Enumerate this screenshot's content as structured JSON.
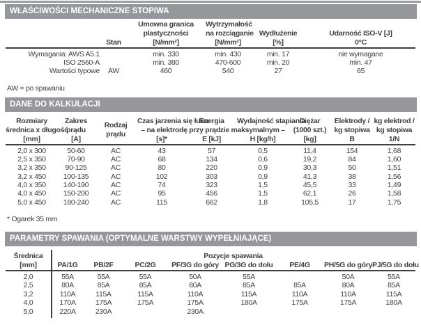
{
  "colors": {
    "section_bar": "#96979b",
    "text": "#414042",
    "rule": "#3d3e40",
    "top_edge_rule": "#9b9c9f"
  },
  "sections": {
    "mechanical": {
      "title": "WŁAŚCIWOŚCI MECHANICZNE STOPIWA",
      "header": {
        "stan": "Stan",
        "yield": [
          "Umowna granica",
          "plastyczności",
          "[N/mm²]"
        ],
        "tensile": [
          "Wytrzymałość",
          "na rozciąganie",
          "[N/mm²]"
        ],
        "elongation": [
          "Wydłużenie",
          "[%]"
        ],
        "impact": [
          "Udarność ISO-V [J]",
          "0°C"
        ]
      },
      "rows": [
        [
          "Wymagania: AWS A5.1",
          "",
          "min. 330",
          "min. 430",
          "min. 17",
          "nie wymagane"
        ],
        [
          "ISO 2560-A",
          "",
          "min. 380",
          "470-600",
          "min. 20",
          "min. 47"
        ],
        [
          "Wartości typowe",
          "AW",
          "460",
          "540",
          "27",
          "65"
        ]
      ],
      "footnote": "AW = po spawaniu"
    },
    "calculation": {
      "title": "DANE DO KALKULACJI",
      "header": {
        "size": [
          "Rozmiary",
          "średnica x długość",
          "[mm]"
        ],
        "current_range": [
          "Zakres",
          "prądu",
          "[A]"
        ],
        "current_type": [
          "Rodzaj",
          "prądu"
        ],
        "group_top": [
          "Czas jarzenia się łuku",
          "Energia",
          "Wydajność stapiania"
        ],
        "group_mid": "– na elektrodę przy prądzie maksymalnym –",
        "group_bottom": [
          "[s]*",
          "E [kJ]",
          "H [kg/h]"
        ],
        "weight": [
          "Ciężar",
          "(1000 szt.)",
          "[kg]"
        ],
        "electrodes_per_kg": [
          "Elektrody /",
          "kg stopiwa",
          "B"
        ],
        "kg_electrodes_per_kg": [
          "kg elektrod /",
          "kg stopiwa",
          "1/N"
        ]
      },
      "rows": [
        [
          "2,0 x 300",
          "50-60",
          "AC",
          "43",
          "57",
          "0,5",
          "11,4",
          "154",
          "1,68"
        ],
        [
          "2,5 x 350",
          "70-90",
          "AC",
          "68",
          "134",
          "0,6",
          "19,2",
          "84",
          "1,60"
        ],
        [
          "3,2 x 350",
          "90-125",
          "AC",
          "80",
          "220",
          "0,9",
          "30,3",
          "50",
          "1,51"
        ],
        [
          "3,2 x 450",
          "100-135",
          "AC",
          "102",
          "303",
          "0,9",
          "41,3",
          "38",
          "1,56"
        ],
        [
          "4,0 x 350",
          "140-190",
          "AC",
          "74",
          "323",
          "1,5",
          "45,5",
          "33",
          "1,49"
        ],
        [
          "4,0 x 450",
          "150-200",
          "AC",
          "95",
          "456",
          "1,5",
          "62,1",
          "26",
          "1,58"
        ],
        [
          "5,0 x 450",
          "180-240",
          "AC",
          "115",
          "662",
          "1,8",
          "105,5",
          "17",
          "1,75"
        ]
      ],
      "footnote": "* Ogarek 35 mm"
    },
    "welding": {
      "title": "PARAMETRY SPAWANIA (OPTYMALNE WARSTWY WYPEŁNIAJĄCE)",
      "header": {
        "diameter": [
          "Średnica",
          "[mm]"
        ],
        "positions_label": "Pozycje spawania",
        "positions": [
          "PA/1G",
          "PB/2F",
          "PC/2G",
          "PF/3G do góry",
          "PG/3G do dołu",
          "PE/4G",
          "PH/5G do góry",
          "PJ/5G do dołu"
        ]
      },
      "rows": [
        [
          "2,0",
          "55A",
          "55A",
          "55A",
          "50A",
          "55A",
          "",
          "50A",
          "55A"
        ],
        [
          "2,5",
          "80A",
          "85A",
          "85A",
          "80A",
          "85A",
          "85A",
          "80A",
          "85A"
        ],
        [
          "3,2",
          "110A",
          "115A",
          "115A",
          "110A",
          "115A",
          "110A",
          "110A",
          "115A"
        ],
        [
          "4,0",
          "170A",
          "175A",
          "175A",
          "175A",
          "180A",
          "175A",
          "175A",
          "180A"
        ],
        [
          "5,0",
          "220A",
          "230A",
          "",
          "230A",
          "",
          "",
          "",
          ""
        ]
      ]
    }
  }
}
